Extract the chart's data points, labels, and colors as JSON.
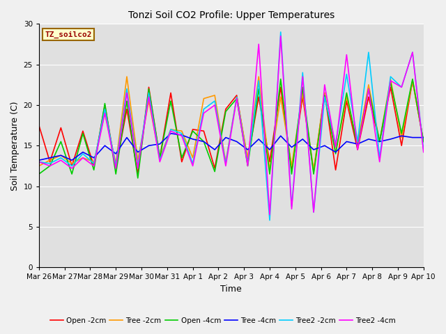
{
  "title": "Tonzi Soil CO2 Profile: Upper Temperatures",
  "xlabel": "Time",
  "ylabel": "Soil Temperature (C)",
  "legend_label": "TZ_soilco2",
  "ylim": [
    0,
    30
  ],
  "series_names": [
    "Open -2cm",
    "Tree -2cm",
    "Open -4cm",
    "Tree -4cm",
    "Tree2 -2cm",
    "Tree2 -4cm"
  ],
  "series_colors": [
    "#ff0000",
    "#ff9900",
    "#00cc00",
    "#0000ff",
    "#00ccff",
    "#ff00ff"
  ],
  "bg_color": "#e0e0e0",
  "fig_facecolor": "#f0f0f0",
  "x_labels": [
    "Mar 26",
    "Mar 27",
    "Mar 28",
    "Mar 29",
    "Mar 30",
    "Mar 31",
    "Apr 1",
    "Apr 2",
    "Apr 3",
    "Apr 4",
    "Apr 5",
    "Apr 6",
    "Apr 7",
    "Apr 8",
    "Apr 9",
    "Apr 10"
  ],
  "x_ticks": [
    0,
    1,
    2,
    3,
    4,
    5,
    6,
    7,
    8,
    9,
    10,
    11,
    12,
    13,
    14,
    15
  ],
  "open_2cm": [
    17.5,
    13.0,
    17.2,
    12.5,
    16.8,
    12.5,
    20.0,
    12.2,
    19.5,
    11.5,
    22.2,
    13.5,
    21.5,
    13.0,
    17.0,
    16.8,
    12.2,
    19.5,
    21.2,
    13.2,
    21.0,
    13.0,
    22.2,
    12.0,
    21.0,
    11.8,
    21.5,
    12.0,
    20.5,
    14.5,
    21.0,
    15.5,
    22.2,
    15.0,
    23.0,
    15.5
  ],
  "tree_2cm": [
    12.5,
    13.2,
    13.8,
    12.8,
    13.5,
    13.0,
    19.0,
    12.8,
    23.5,
    13.2,
    20.5,
    13.5,
    17.0,
    16.8,
    13.5,
    20.8,
    21.2,
    13.0,
    21.0,
    13.5,
    23.5,
    12.0,
    21.0,
    12.5,
    21.5,
    12.0,
    21.5,
    14.2,
    21.0,
    15.2,
    22.5,
    15.5,
    23.2,
    16.0,
    23.0,
    15.5
  ],
  "open_4cm": [
    11.5,
    12.5,
    15.5,
    11.5,
    16.5,
    12.0,
    20.2,
    11.5,
    20.5,
    11.0,
    22.0,
    13.5,
    20.5,
    13.5,
    16.8,
    15.5,
    11.8,
    19.2,
    20.8,
    12.5,
    22.0,
    11.5,
    23.2,
    11.5,
    22.2,
    11.5,
    21.2,
    14.0,
    21.5,
    14.8,
    22.0,
    15.5,
    22.8,
    16.5,
    23.2,
    15.5
  ],
  "tree_4cm": [
    13.2,
    13.5,
    13.8,
    13.2,
    14.2,
    13.5,
    15.0,
    14.0,
    16.0,
    14.2,
    15.0,
    15.2,
    16.5,
    16.3,
    15.8,
    15.5,
    14.5,
    16.0,
    15.5,
    14.5,
    15.8,
    14.5,
    16.2,
    14.8,
    15.8,
    14.5,
    15.0,
    14.2,
    15.5,
    15.2,
    15.8,
    15.5,
    15.8,
    16.2,
    16.0,
    16.0
  ],
  "tree2_2cm": [
    13.0,
    12.8,
    13.5,
    12.5,
    14.0,
    12.8,
    19.5,
    12.5,
    22.0,
    12.5,
    21.5,
    13.2,
    17.0,
    16.5,
    12.8,
    19.5,
    20.5,
    12.8,
    21.0,
    12.8,
    23.0,
    5.8,
    29.0,
    7.5,
    24.0,
    6.8,
    21.0,
    15.2,
    23.8,
    15.5,
    26.5,
    13.5,
    23.5,
    22.2,
    26.5,
    14.5
  ],
  "tree2_4cm": [
    13.0,
    12.5,
    13.2,
    12.2,
    13.5,
    12.5,
    19.0,
    12.2,
    21.5,
    12.2,
    21.0,
    13.0,
    16.8,
    16.2,
    12.5,
    19.0,
    20.0,
    12.5,
    20.8,
    12.5,
    27.5,
    6.5,
    28.5,
    7.2,
    23.5,
    6.8,
    22.5,
    14.8,
    26.2,
    14.5,
    22.0,
    13.0,
    23.0,
    22.2,
    26.5,
    14.2
  ]
}
